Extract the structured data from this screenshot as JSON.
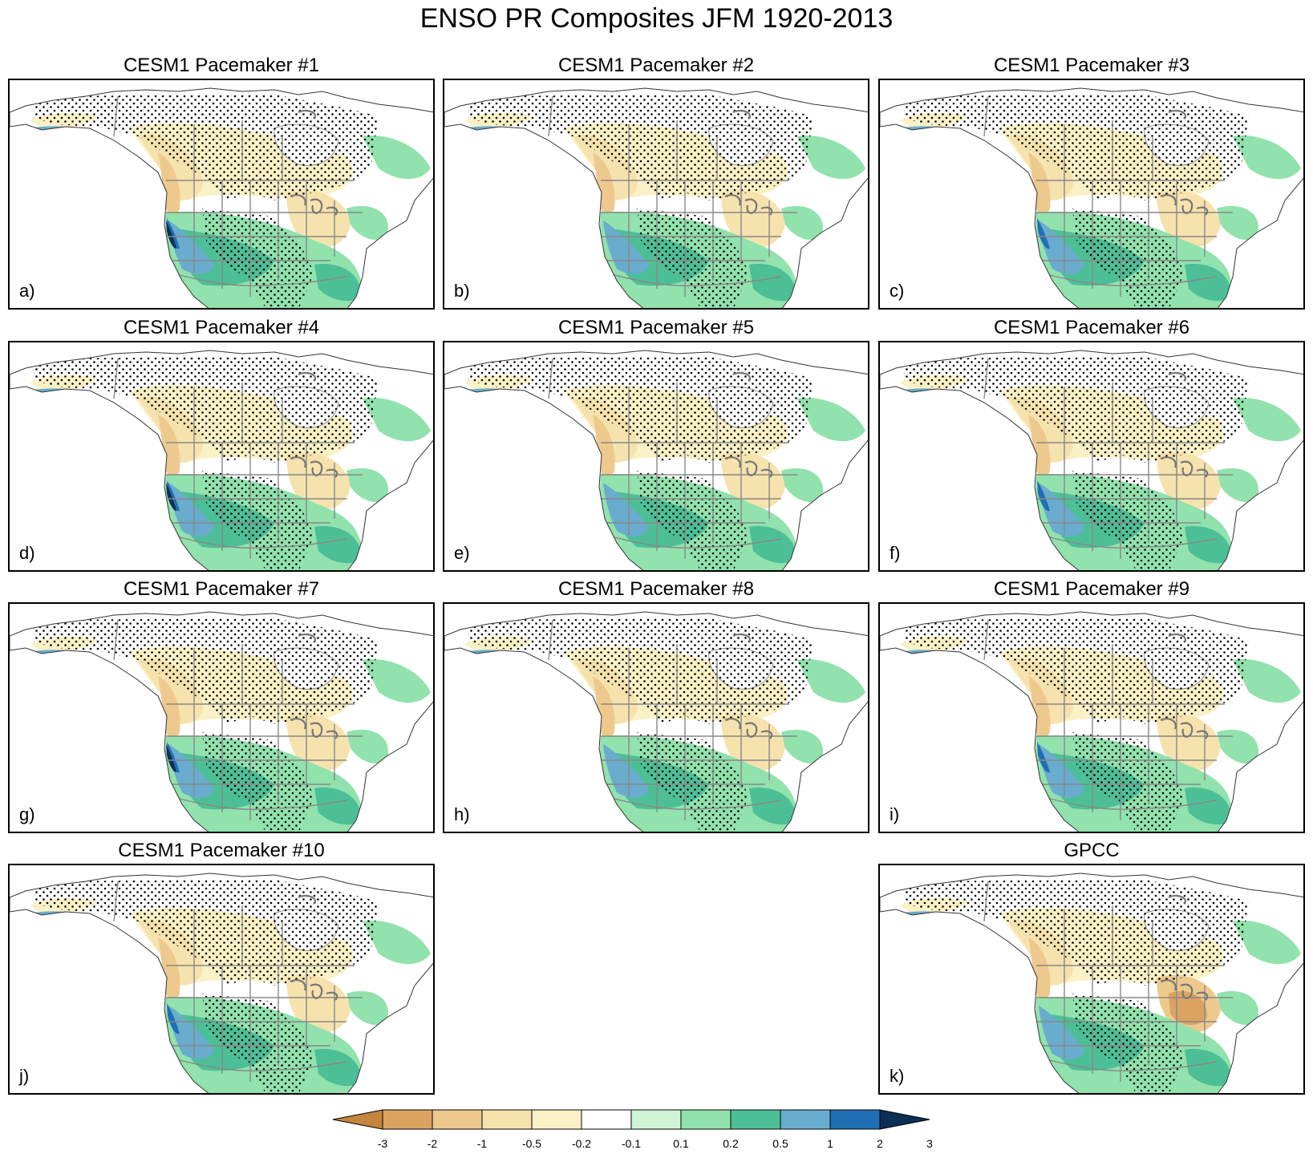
{
  "figure": {
    "title": "ENSO PR Composites JFM 1920-2013"
  },
  "panels": [
    {
      "title": "CESM1 Pacemaker #1",
      "label": "a)",
      "variant": 1
    },
    {
      "title": "CESM1 Pacemaker #2",
      "label": "b)",
      "variant": 2
    },
    {
      "title": "CESM1 Pacemaker #3",
      "label": "c)",
      "variant": 3
    },
    {
      "title": "CESM1 Pacemaker #4",
      "label": "d)",
      "variant": 4
    },
    {
      "title": "CESM1 Pacemaker #5",
      "label": "e)",
      "variant": 5
    },
    {
      "title": "CESM1 Pacemaker #6",
      "label": "f)",
      "variant": 6
    },
    {
      "title": "CESM1 Pacemaker #7",
      "label": "g)",
      "variant": 7
    },
    {
      "title": "CESM1 Pacemaker #8",
      "label": "h)",
      "variant": 8
    },
    {
      "title": "CESM1 Pacemaker #9",
      "label": "i)",
      "variant": 9
    },
    {
      "title": "CESM1 Pacemaker #10",
      "label": "j)",
      "variant": 10
    },
    {
      "title": "GPCC",
      "label": "k)",
      "variant": 11
    }
  ],
  "colorbar": {
    "ticks": [
      "-3",
      "-2",
      "-1",
      "-0.5",
      "-0.2",
      "-0.1",
      "0.1",
      "0.2",
      "0.5",
      "1",
      "2",
      "3"
    ],
    "colors": [
      "#c4853d",
      "#dba362",
      "#eec98d",
      "#f6e2ad",
      "#fbf1c6",
      "#ffffff",
      "#cff4d6",
      "#91e2ad",
      "#4dbf97",
      "#6aaccd",
      "#1f6fb5",
      "#0b2f55"
    ]
  }
}
